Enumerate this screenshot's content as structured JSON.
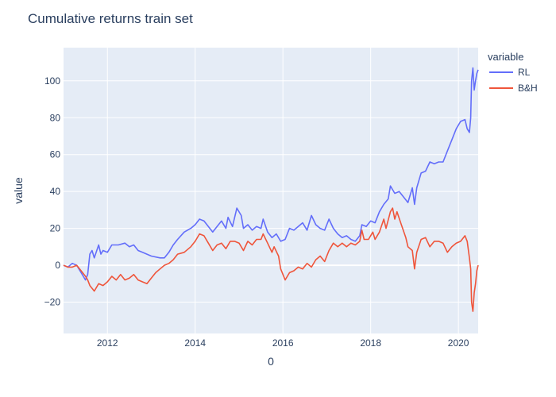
{
  "chart_data": {
    "type": "line",
    "title": "Cumulative returns train set",
    "xlabel": "0",
    "ylabel": "value",
    "xlim": [
      2011.0,
      2020.45
    ],
    "ylim": [
      -37,
      118
    ],
    "x_ticks": [
      2012,
      2014,
      2016,
      2018,
      2020
    ],
    "y_ticks": [
      -20,
      0,
      20,
      40,
      60,
      80,
      100
    ],
    "grid": true,
    "legend": {
      "title": "variable",
      "position": "top-right"
    },
    "colors": {
      "plot_bg": "#e5ecf6",
      "grid": "#ffffff",
      "text": "#2a3f5f"
    },
    "series": [
      {
        "name": "RL",
        "color": "#636efa",
        "points": [
          [
            2011.0,
            0
          ],
          [
            2011.1,
            -1
          ],
          [
            2011.2,
            1
          ],
          [
            2011.3,
            0
          ],
          [
            2011.4,
            -4
          ],
          [
            2011.5,
            -8
          ],
          [
            2011.55,
            -5
          ],
          [
            2011.6,
            6
          ],
          [
            2011.65,
            8
          ],
          [
            2011.7,
            4
          ],
          [
            2011.8,
            11
          ],
          [
            2011.85,
            6
          ],
          [
            2011.9,
            8
          ],
          [
            2012.0,
            7
          ],
          [
            2012.1,
            11
          ],
          [
            2012.25,
            11
          ],
          [
            2012.4,
            12
          ],
          [
            2012.5,
            10
          ],
          [
            2012.6,
            11
          ],
          [
            2012.7,
            8
          ],
          [
            2012.8,
            7
          ],
          [
            2013.0,
            5
          ],
          [
            2013.2,
            4
          ],
          [
            2013.3,
            4
          ],
          [
            2013.4,
            7
          ],
          [
            2013.5,
            11
          ],
          [
            2013.6,
            14
          ],
          [
            2013.75,
            18
          ],
          [
            2013.9,
            20
          ],
          [
            2014.0,
            22
          ],
          [
            2014.1,
            25
          ],
          [
            2014.2,
            24
          ],
          [
            2014.3,
            21
          ],
          [
            2014.4,
            18
          ],
          [
            2014.5,
            21
          ],
          [
            2014.6,
            24
          ],
          [
            2014.7,
            20
          ],
          [
            2014.75,
            26
          ],
          [
            2014.85,
            21
          ],
          [
            2014.95,
            31
          ],
          [
            2015.05,
            27
          ],
          [
            2015.1,
            20
          ],
          [
            2015.2,
            22
          ],
          [
            2015.3,
            19
          ],
          [
            2015.4,
            21
          ],
          [
            2015.5,
            20
          ],
          [
            2015.55,
            25
          ],
          [
            2015.65,
            18
          ],
          [
            2015.75,
            15
          ],
          [
            2015.85,
            17
          ],
          [
            2015.95,
            13
          ],
          [
            2016.05,
            14
          ],
          [
            2016.15,
            20
          ],
          [
            2016.25,
            19
          ],
          [
            2016.35,
            21
          ],
          [
            2016.45,
            23
          ],
          [
            2016.55,
            19
          ],
          [
            2016.65,
            27
          ],
          [
            2016.75,
            22
          ],
          [
            2016.85,
            20
          ],
          [
            2016.95,
            19
          ],
          [
            2017.05,
            25
          ],
          [
            2017.15,
            20
          ],
          [
            2017.25,
            17
          ],
          [
            2017.35,
            15
          ],
          [
            2017.45,
            16
          ],
          [
            2017.55,
            14
          ],
          [
            2017.65,
            13
          ],
          [
            2017.75,
            16
          ],
          [
            2017.8,
            22
          ],
          [
            2017.9,
            21
          ],
          [
            2018.0,
            24
          ],
          [
            2018.1,
            23
          ],
          [
            2018.2,
            29
          ],
          [
            2018.3,
            33
          ],
          [
            2018.4,
            36
          ],
          [
            2018.45,
            43
          ],
          [
            2018.55,
            39
          ],
          [
            2018.65,
            40
          ],
          [
            2018.75,
            37
          ],
          [
            2018.85,
            34
          ],
          [
            2018.95,
            42
          ],
          [
            2019.0,
            33
          ],
          [
            2019.05,
            42
          ],
          [
            2019.15,
            50
          ],
          [
            2019.25,
            51
          ],
          [
            2019.35,
            56
          ],
          [
            2019.45,
            55
          ],
          [
            2019.55,
            56
          ],
          [
            2019.65,
            56
          ],
          [
            2019.75,
            62
          ],
          [
            2019.85,
            68
          ],
          [
            2019.95,
            74
          ],
          [
            2020.05,
            78
          ],
          [
            2020.15,
            79
          ],
          [
            2020.2,
            74
          ],
          [
            2020.25,
            72
          ],
          [
            2020.28,
            80
          ],
          [
            2020.3,
            100
          ],
          [
            2020.33,
            107
          ],
          [
            2020.36,
            95
          ],
          [
            2020.39,
            100
          ],
          [
            2020.42,
            104
          ],
          [
            2020.45,
            106
          ]
        ]
      },
      {
        "name": "B&H",
        "color": "#ef553b",
        "points": [
          [
            2011.0,
            0
          ],
          [
            2011.1,
            -1
          ],
          [
            2011.2,
            -1
          ],
          [
            2011.3,
            0
          ],
          [
            2011.4,
            -3
          ],
          [
            2011.5,
            -6
          ],
          [
            2011.55,
            -8
          ],
          [
            2011.6,
            -11
          ],
          [
            2011.7,
            -14
          ],
          [
            2011.8,
            -10
          ],
          [
            2011.9,
            -11
          ],
          [
            2012.0,
            -9
          ],
          [
            2012.1,
            -6
          ],
          [
            2012.2,
            -8
          ],
          [
            2012.3,
            -5
          ],
          [
            2012.4,
            -8
          ],
          [
            2012.5,
            -7
          ],
          [
            2012.6,
            -5
          ],
          [
            2012.7,
            -8
          ],
          [
            2012.8,
            -9
          ],
          [
            2012.9,
            -10
          ],
          [
            2013.0,
            -7
          ],
          [
            2013.1,
            -4
          ],
          [
            2013.2,
            -2
          ],
          [
            2013.3,
            0
          ],
          [
            2013.4,
            1
          ],
          [
            2013.5,
            3
          ],
          [
            2013.6,
            6
          ],
          [
            2013.75,
            7
          ],
          [
            2013.9,
            10
          ],
          [
            2014.0,
            13
          ],
          [
            2014.1,
            17
          ],
          [
            2014.2,
            16
          ],
          [
            2014.3,
            12
          ],
          [
            2014.4,
            8
          ],
          [
            2014.5,
            11
          ],
          [
            2014.6,
            12
          ],
          [
            2014.7,
            9
          ],
          [
            2014.8,
            13
          ],
          [
            2014.9,
            13
          ],
          [
            2015.0,
            12
          ],
          [
            2015.1,
            8
          ],
          [
            2015.2,
            13
          ],
          [
            2015.3,
            11
          ],
          [
            2015.4,
            14
          ],
          [
            2015.5,
            14
          ],
          [
            2015.55,
            17
          ],
          [
            2015.65,
            12
          ],
          [
            2015.75,
            7
          ],
          [
            2015.8,
            10
          ],
          [
            2015.9,
            5
          ],
          [
            2015.95,
            -2
          ],
          [
            2016.05,
            -8
          ],
          [
            2016.15,
            -4
          ],
          [
            2016.25,
            -3
          ],
          [
            2016.35,
            -1
          ],
          [
            2016.45,
            -2
          ],
          [
            2016.55,
            1
          ],
          [
            2016.65,
            -1
          ],
          [
            2016.75,
            3
          ],
          [
            2016.85,
            5
          ],
          [
            2016.95,
            2
          ],
          [
            2017.05,
            8
          ],
          [
            2017.15,
            12
          ],
          [
            2017.25,
            10
          ],
          [
            2017.35,
            12
          ],
          [
            2017.45,
            10
          ],
          [
            2017.55,
            12
          ],
          [
            2017.65,
            11
          ],
          [
            2017.75,
            13
          ],
          [
            2017.8,
            19
          ],
          [
            2017.85,
            14
          ],
          [
            2017.95,
            14
          ],
          [
            2018.05,
            18
          ],
          [
            2018.1,
            14
          ],
          [
            2018.2,
            18
          ],
          [
            2018.3,
            25
          ],
          [
            2018.35,
            20
          ],
          [
            2018.45,
            29
          ],
          [
            2018.5,
            31
          ],
          [
            2018.55,
            25
          ],
          [
            2018.6,
            29
          ],
          [
            2018.7,
            22
          ],
          [
            2018.8,
            15
          ],
          [
            2018.85,
            10
          ],
          [
            2018.95,
            8
          ],
          [
            2019.0,
            -2
          ],
          [
            2019.05,
            7
          ],
          [
            2019.15,
            14
          ],
          [
            2019.25,
            15
          ],
          [
            2019.35,
            10
          ],
          [
            2019.45,
            13
          ],
          [
            2019.55,
            13
          ],
          [
            2019.65,
            12
          ],
          [
            2019.75,
            7
          ],
          [
            2019.85,
            10
          ],
          [
            2019.95,
            12
          ],
          [
            2020.05,
            13
          ],
          [
            2020.15,
            16
          ],
          [
            2020.2,
            13
          ],
          [
            2020.25,
            4
          ],
          [
            2020.28,
            -2
          ],
          [
            2020.3,
            -20
          ],
          [
            2020.33,
            -25
          ],
          [
            2020.36,
            -15
          ],
          [
            2020.39,
            -10
          ],
          [
            2020.42,
            -3
          ],
          [
            2020.45,
            0
          ]
        ]
      }
    ]
  }
}
